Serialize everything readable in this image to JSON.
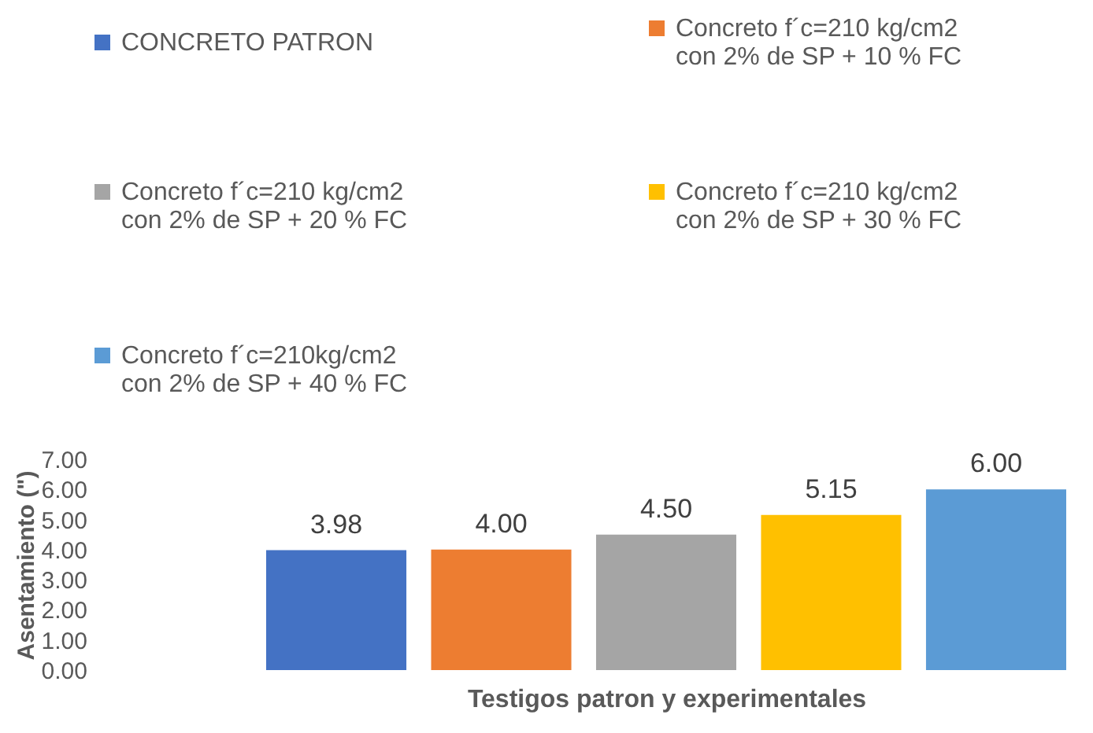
{
  "chart_data": {
    "type": "bar",
    "xlabel": "Testigos patron y experimentales",
    "ylabel": "Asentamiento (\")",
    "categories": [
      null
    ],
    "series": [
      {
        "name": "CONCRETO PATRON",
        "color": "#4472c4",
        "values": [
          3.98
        ],
        "value_labels": [
          "3.98"
        ]
      },
      {
        "name": "Concreto f´c=210 kg/cm2 con 2% de SP + 10 % FC",
        "color": "#ed7d31",
        "values": [
          4.0
        ],
        "value_labels": [
          "4.00"
        ]
      },
      {
        "name": "Concreto f´c=210 kg/cm2 con 2% de SP + 20 % FC",
        "color": "#a5a5a5",
        "values": [
          4.5
        ],
        "value_labels": [
          "4.50"
        ]
      },
      {
        "name": "Concreto f´c=210 kg/cm2 con 2% de SP + 30 % FC",
        "color": "#ffc000",
        "values": [
          5.15
        ],
        "value_labels": [
          "5.15"
        ]
      },
      {
        "name": "Concreto f´c=210kg/cm2 con 2% de SP + 40 % FC",
        "color": "#5b9bd5",
        "values": [
          6.0
        ],
        "value_labels": [
          "6.00"
        ]
      }
    ],
    "ylim": [
      0,
      7
    ],
    "yticks": [
      {
        "value": 0,
        "label": "0.00"
      },
      {
        "value": 1,
        "label": "1.00"
      },
      {
        "value": 2,
        "label": "2.00"
      },
      {
        "value": 3,
        "label": "3.00"
      },
      {
        "value": 4,
        "label": "4.00"
      },
      {
        "value": 5,
        "label": "5.00"
      },
      {
        "value": 6,
        "label": "6.00"
      },
      {
        "value": 7,
        "label": "7.00"
      }
    ],
    "grid": false,
    "legend": "top",
    "data_labels": true
  }
}
